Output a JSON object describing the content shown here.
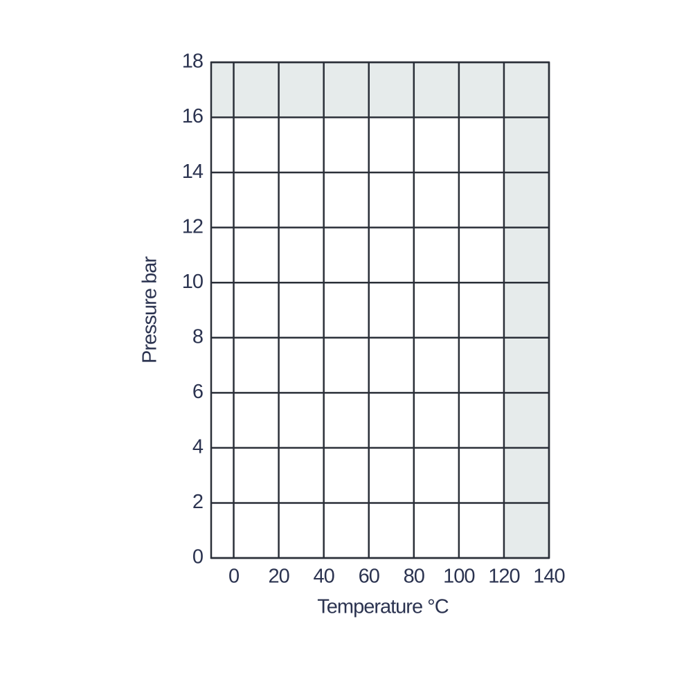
{
  "chart_data": {
    "type": "area",
    "x_label": "Temperature °C",
    "y_label": "Pressure bar",
    "x": [
      -10,
      120
    ],
    "values": [
      16,
      16
    ],
    "color": "#ffffff",
    "background": "#e6ebeb",
    "xlim": [
      -10,
      140
    ],
    "xticks": [
      0,
      20,
      40,
      60,
      80,
      100,
      120,
      140
    ],
    "ylim": [
      0,
      18
    ],
    "yticks": [
      0,
      2,
      4,
      6,
      8,
      10,
      12,
      14,
      16,
      18
    ],
    "grid": true
  }
}
